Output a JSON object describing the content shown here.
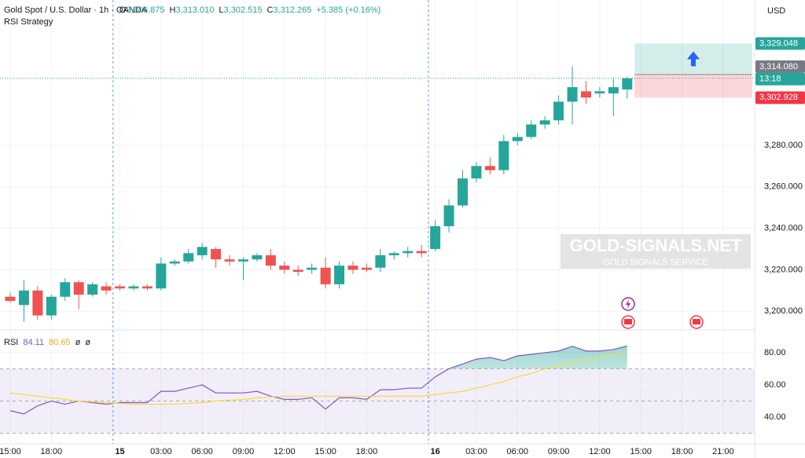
{
  "header": {
    "symbol": "Gold Spot / U.S. Dollar · 1h · OANDA",
    "strategy": "RSI Strategy",
    "ohlc": [
      {
        "label": "O",
        "value": "3,306.875"
      },
      {
        "label": "H",
        "value": "3,313.010"
      },
      {
        "label": "L",
        "value": "3,302.515"
      },
      {
        "label": "C",
        "value": "3,312.265"
      },
      {
        "label": "",
        "value": "+5.385 (+0.16%)"
      }
    ],
    "currency": "USD"
  },
  "chart_data": [
    {
      "type": "candlestick",
      "categories": [
        "15:00",
        null,
        null,
        "18:00",
        null,
        null,
        null,
        null,
        "15",
        null,
        null,
        "03:00",
        null,
        null,
        "06:00",
        null,
        null,
        "09:00",
        null,
        null,
        "12:00",
        null,
        null,
        "15:00",
        null,
        null,
        "18:00",
        null,
        null,
        null,
        null,
        "16",
        null,
        null,
        "03:00",
        null,
        null,
        "06:00",
        null,
        null,
        "09:00",
        null,
        null,
        "12:00",
        null,
        null,
        "15:00",
        null,
        null,
        "18:00",
        null,
        null,
        "21:00"
      ],
      "open": [
        3207,
        3203,
        3210,
        3198,
        3207,
        3214,
        3208,
        3212,
        3212,
        3211,
        3212,
        3211,
        3223,
        3224,
        3227,
        3230,
        3225,
        3224,
        3225,
        3227,
        3222,
        3220,
        3220,
        3221,
        3213,
        3222,
        3221,
        3221,
        3227,
        3228,
        3229,
        3230,
        3241,
        3251,
        3264,
        3270,
        3268,
        3282,
        3284,
        3290,
        3292,
        3301,
        3306,
        3305,
        3305,
        3306.875,
        null,
        null,
        null,
        null,
        null,
        null,
        null
      ],
      "high": [
        3209,
        3215,
        3212,
        3208,
        3216,
        3215,
        3214,
        3214,
        3213,
        3213,
        3213,
        3226,
        3225,
        3230,
        3233,
        3231,
        3227,
        3226,
        3228,
        3230,
        3224,
        3222,
        3223,
        3226,
        3224,
        3224,
        3223,
        3230,
        3229,
        3231,
        3232,
        3244,
        3254,
        3268,
        3272,
        3274,
        3285,
        3286,
        3292,
        3294,
        3304,
        3318,
        3311,
        3308,
        3312,
        3313.01,
        null,
        null,
        null,
        null,
        null,
        null,
        null
      ],
      "low": [
        3204,
        3195,
        3196,
        3196,
        3205,
        3201,
        3207,
        3208,
        3210,
        3210,
        3210,
        3210,
        3222,
        3223,
        3225,
        3221,
        3222,
        3215,
        3224,
        3220,
        3218,
        3217,
        3218,
        3211,
        3211,
        3218,
        3219,
        3219,
        3225,
        3226,
        3226,
        3229,
        3238,
        3250,
        3262,
        3266,
        3266,
        3280,
        3283,
        3288,
        3290,
        3290,
        3300,
        3303,
        3294,
        3302.515,
        null,
        null,
        null,
        null,
        null,
        null,
        null
      ],
      "close": [
        3205,
        3210,
        3198,
        3207,
        3214,
        3208,
        3213,
        3210,
        3211,
        3212,
        3211,
        3223,
        3224,
        3228,
        3231,
        3225,
        3224,
        3225,
        3227,
        3222,
        3220,
        3219,
        3221,
        3213,
        3222,
        3220,
        3220,
        3227,
        3228,
        3229,
        3228,
        3241,
        3251,
        3264,
        3270,
        3268,
        3282,
        3284,
        3290,
        3292,
        3301,
        3308,
        3303,
        3306,
        3308,
        3312.265,
        null,
        null,
        null,
        null,
        null,
        null,
        null
      ],
      "up_color": "#26a69a",
      "down_color": "#ef5350",
      "ylim": [
        3191,
        3350
      ],
      "yticks": [
        {
          "value": 3200,
          "label": "3,200.000"
        },
        {
          "value": 3220,
          "label": "3,220.000"
        },
        {
          "value": 3240,
          "label": "3,240.000"
        },
        {
          "value": 3260,
          "label": "3,260.000"
        },
        {
          "value": 3280,
          "label": "3,280.000"
        }
      ],
      "position": {
        "target": 3329.048,
        "target_label": "3,329.048",
        "entry": 3314.08,
        "entry_label": "3,314.080",
        "stop": 3302.928,
        "stop_label": "3,302.928",
        "countdown": "13:18"
      },
      "watermark": {
        "title": "GOLD-SIGNALS.NET",
        "subtitle": "GOLD SIGNALS SERVICE"
      }
    },
    {
      "type": "line",
      "legend": [
        "RSI",
        "84.11",
        "80.65",
        "ø",
        "ø"
      ],
      "series": [
        {
          "name": "RSI",
          "color": "#7e57c2",
          "values": [
            44,
            42,
            47,
            50,
            48,
            50,
            49,
            48,
            49,
            49,
            49,
            56,
            56,
            58,
            60,
            55,
            55,
            55,
            56,
            53,
            51,
            51,
            52,
            45,
            52,
            52,
            51,
            57,
            57,
            58,
            58,
            65,
            70,
            73,
            76,
            77,
            75,
            78,
            79,
            80,
            81,
            84,
            81,
            81,
            82,
            84.11,
            null,
            null,
            null,
            null,
            null,
            null,
            null
          ]
        },
        {
          "name": "RSI-based MA",
          "color": "#fdd835",
          "values": [
            55,
            54,
            53,
            52,
            51,
            50,
            49.5,
            49,
            48.5,
            48,
            48,
            48,
            48,
            48.5,
            49,
            50,
            50.5,
            51,
            52,
            52.5,
            53,
            53,
            53,
            53,
            53,
            53,
            53,
            53,
            53,
            53,
            53,
            54,
            55,
            56,
            58,
            60,
            62,
            65,
            67,
            70,
            72,
            74,
            75,
            77,
            79,
            80.65,
            null,
            null,
            null,
            null,
            null,
            null,
            null
          ]
        }
      ],
      "ylim": [
        23.4,
        94.1
      ],
      "yticks": [
        {
          "value": 40,
          "label": "40.00"
        },
        {
          "value": 60,
          "label": "60.00"
        },
        {
          "value": 80,
          "label": "80.00"
        }
      ],
      "bands": [
        30,
        50,
        70
      ]
    }
  ]
}
